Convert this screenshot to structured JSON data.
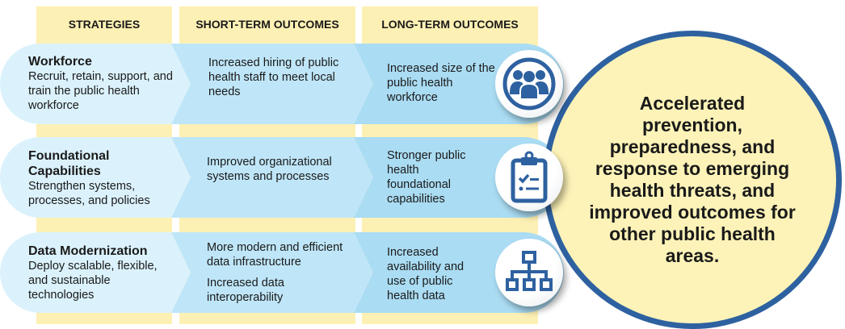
{
  "headers": [
    "STRATEGIES",
    "SHORT-TERM OUTCOMES",
    "LONG-TERM OUTCOMES"
  ],
  "rows": [
    {
      "strategy_title": "Workforce",
      "strategy_desc": "Recruit, retain, support, and train the public health workforce",
      "short_term": [
        "Increased hiring of public health staff to meet local needs"
      ],
      "long_term": "Increased size of the public health workforce",
      "icon": "people-group-icon"
    },
    {
      "strategy_title": "Foundational Capabilities",
      "strategy_desc": "Strengthen systems, processes, and policies",
      "short_term": [
        "Improved organizational systems and processes"
      ],
      "long_term": "Stronger public health foundational capabilities",
      "icon": "clipboard-checklist-icon"
    },
    {
      "strategy_title": "Data Modernization",
      "strategy_desc": "Deploy scalable, flexible, and sustainable technologies",
      "short_term": [
        "More modern and efficient data infrastructure",
        "Increased data interoperability"
      ],
      "long_term": "Increased availability and use of public health data",
      "icon": "org-hierarchy-icon"
    }
  ],
  "goal": "Accelerated prevention, preparedness, and response to emerging health threats, and improved outcomes for other public health areas.",
  "colors": {
    "column_bg": "#fdf0b4",
    "accent_blue": "#2e61a0",
    "goal_bg": "#fdf3b8"
  }
}
